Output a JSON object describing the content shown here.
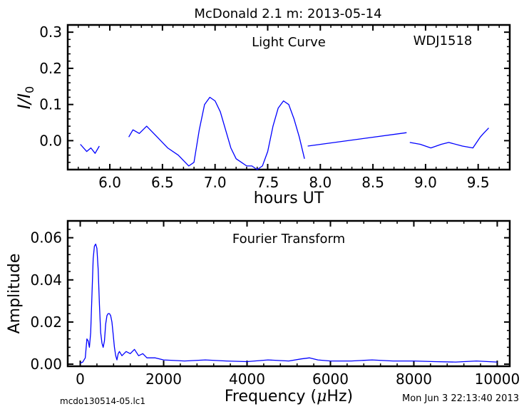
{
  "title": "McDonald 2.1 m:  2013-05-14",
  "footer": {
    "left": "mcdo130514-05.lc1",
    "right": "Mon Jun  3 22:13:40 2013"
  },
  "chart_data": [
    {
      "type": "line",
      "panel": "top",
      "annotation": "Light Curve",
      "target": "WDJ1518",
      "xlabel": "hours UT",
      "ylabel_main": "I",
      "ylabel_div": "/",
      "ylabel_sub_main": "I",
      "ylabel_sub": "0",
      "xlim": [
        5.6,
        9.8
      ],
      "ylim": [
        -0.08,
        0.32
      ],
      "xticks": [
        6.0,
        6.5,
        7.0,
        7.5,
        8.0,
        8.5,
        9.0,
        9.5
      ],
      "xtick_labels": [
        "6.0",
        "6.5",
        "7.0",
        "7.5",
        "8.0",
        "8.5",
        "9.0",
        "9.5"
      ],
      "yticks": [
        0.0,
        0.1,
        0.2,
        0.3
      ],
      "ytick_labels": [
        "0.0",
        "0.1",
        "0.2",
        "0.3"
      ],
      "color": "#0000ff",
      "segments": [
        {
          "x": [
            5.72,
            5.78,
            5.82,
            5.86,
            5.9
          ],
          "y": [
            -0.01,
            -0.03,
            -0.02,
            -0.035,
            -0.015
          ]
        },
        {
          "x": [
            6.18,
            6.22,
            6.28,
            6.35,
            6.45,
            6.55,
            6.65,
            6.75,
            6.8,
            6.85,
            6.9,
            6.95,
            7.0,
            7.05,
            7.1,
            7.15,
            7.2,
            7.25,
            7.3,
            7.35,
            7.4,
            7.45,
            7.5,
            7.55,
            7.6,
            7.65,
            7.7,
            7.75,
            7.8,
            7.85
          ],
          "y": [
            0.01,
            0.03,
            0.02,
            0.04,
            0.01,
            -0.02,
            -0.04,
            -0.07,
            -0.06,
            0.03,
            0.1,
            0.12,
            0.11,
            0.08,
            0.03,
            -0.02,
            -0.05,
            -0.06,
            -0.07,
            -0.07,
            -0.08,
            -0.07,
            -0.03,
            0.04,
            0.09,
            0.11,
            0.1,
            0.06,
            0.01,
            -0.05
          ]
        },
        {
          "x": [
            7.88,
            8.82
          ],
          "y": [
            -0.015,
            0.022
          ]
        },
        {
          "x": [
            8.85,
            8.95,
            9.05,
            9.15,
            9.22,
            9.35,
            9.45,
            9.52,
            9.55,
            9.6
          ],
          "y": [
            -0.005,
            -0.01,
            -0.02,
            -0.01,
            -0.005,
            -0.015,
            -0.02,
            0.01,
            0.02,
            0.035
          ]
        }
      ]
    },
    {
      "type": "line",
      "panel": "bottom",
      "annotation": "Fourier Transform",
      "xlabel_main": "Frequency (",
      "xlabel_mu": "μ",
      "xlabel_end": "Hz)",
      "ylabel": "Amplitude",
      "xlim": [
        -300,
        10300
      ],
      "ylim": [
        -0.001,
        0.068
      ],
      "xticks": [
        0,
        2000,
        4000,
        6000,
        8000,
        10000
      ],
      "xtick_labels": [
        "0",
        "2000",
        "4000",
        "6000",
        "8000",
        "10000"
      ],
      "yticks": [
        0.0,
        0.02,
        0.04,
        0.06
      ],
      "ytick_labels": [
        "0.00",
        "0.02",
        "0.04",
        "0.06"
      ],
      "color": "#0000ff",
      "x": [
        0,
        60,
        120,
        160,
        190,
        220,
        250,
        280,
        310,
        340,
        370,
        400,
        430,
        460,
        490,
        520,
        550,
        580,
        610,
        640,
        670,
        700,
        730,
        760,
        790,
        820,
        850,
        880,
        910,
        940,
        1000,
        1100,
        1200,
        1300,
        1400,
        1500,
        1600,
        1800,
        2000,
        2500,
        3000,
        3500,
        4000,
        4500,
        5000,
        5300,
        5500,
        5700,
        6000,
        6500,
        7000,
        7500,
        8000,
        8500,
        9000,
        9500,
        10000
      ],
      "y": [
        0.0005,
        0.001,
        0.003,
        0.012,
        0.011,
        0.008,
        0.015,
        0.032,
        0.05,
        0.056,
        0.057,
        0.055,
        0.045,
        0.028,
        0.015,
        0.01,
        0.008,
        0.011,
        0.019,
        0.023,
        0.024,
        0.024,
        0.023,
        0.02,
        0.014,
        0.008,
        0.004,
        0.002,
        0.005,
        0.006,
        0.004,
        0.006,
        0.005,
        0.007,
        0.004,
        0.005,
        0.003,
        0.003,
        0.002,
        0.0015,
        0.002,
        0.0015,
        0.0012,
        0.002,
        0.0015,
        0.0025,
        0.003,
        0.002,
        0.0015,
        0.0015,
        0.002,
        0.0015,
        0.0015,
        0.0012,
        0.001,
        0.0015,
        0.001
      ]
    }
  ]
}
